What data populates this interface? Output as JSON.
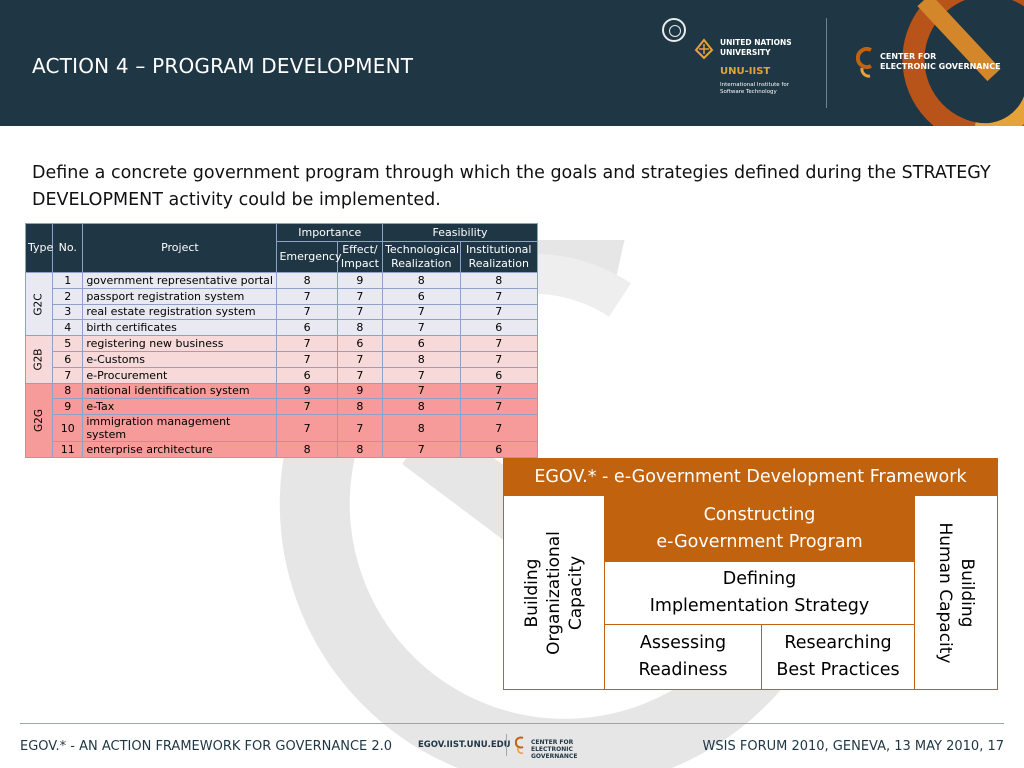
{
  "header": {
    "title": "ACTION 4 – PROGRAM DEVELOPMENT",
    "unu": {
      "name_line1": "UNITED NATIONS",
      "name_line2": "UNIVERSITY",
      "iist": "UNU-IIST",
      "iist_sub_line1": "International Institute for",
      "iist_sub_line2": "Software Technology"
    },
    "egov_center": {
      "line1": "CENTER FOR",
      "line2": "ELECTRONIC GOVERNANCE"
    }
  },
  "intro": "Define a concrete government program through which the goals and strategies defined during the STRATEGY DEVELOPMENT activity could be implemented.",
  "project_table": {
    "headers": {
      "type": "Type",
      "no": "No.",
      "project": "Project",
      "importance": "Importance",
      "feasibility": "Feasibility",
      "emergency": "Emergency",
      "effect_line1": "Effect/",
      "effect_line2": "Impact",
      "tech_line1": "Technological",
      "tech_line2": "Realization",
      "inst_line1": "Institutional",
      "inst_line2": "Realization"
    },
    "groups": [
      {
        "type": "G2C",
        "rows": [
          {
            "no": "1",
            "project": "government representative portal",
            "emergency": "8",
            "impact": "9",
            "tech": "8",
            "inst": "8"
          },
          {
            "no": "2",
            "project": "passport registration system",
            "emergency": "7",
            "impact": "7",
            "tech": "6",
            "inst": "7"
          },
          {
            "no": "3",
            "project": "real estate registration system",
            "emergency": "7",
            "impact": "7",
            "tech": "7",
            "inst": "7"
          },
          {
            "no": "4",
            "project": "birth certificates",
            "emergency": "6",
            "impact": "8",
            "tech": "7",
            "inst": "6"
          }
        ]
      },
      {
        "type": "G2B",
        "rows": [
          {
            "no": "5",
            "project": "registering new business",
            "emergency": "7",
            "impact": "6",
            "tech": "6",
            "inst": "7"
          },
          {
            "no": "6",
            "project": "e-Customs",
            "emergency": "7",
            "impact": "7",
            "tech": "8",
            "inst": "7"
          },
          {
            "no": "7",
            "project": "e-Procurement",
            "emergency": "6",
            "impact": "7",
            "tech": "7",
            "inst": "6"
          }
        ]
      },
      {
        "type": "G2G",
        "rows": [
          {
            "no": "8",
            "project": "national identification system",
            "emergency": "9",
            "impact": "9",
            "tech": "7",
            "inst": "7"
          },
          {
            "no": "9",
            "project": "e-Tax",
            "emergency": "7",
            "impact": "8",
            "tech": "8",
            "inst": "7"
          },
          {
            "no": "10",
            "project": "immigration management system",
            "emergency": "7",
            "impact": "7",
            "tech": "8",
            "inst": "7"
          },
          {
            "no": "11",
            "project": "enterprise architecture",
            "emergency": "8",
            "impact": "8",
            "tech": "7",
            "inst": "6"
          }
        ]
      }
    ]
  },
  "framework": {
    "title": "EGOV.* - e-Government Development Framework",
    "left_line1": "Building",
    "left_line2": "Organizational",
    "left_line3": "Capacity",
    "right_line1": "Building",
    "right_line2": "Human Capacity",
    "construct_line1": "Constructing",
    "construct_line2": "e-Government Program",
    "defining_line1": "Defining",
    "defining_line2": "Implementation Strategy",
    "assess_line1": "Assessing",
    "assess_line2": "Readiness",
    "research_line1": "Researching",
    "research_line2": "Best Practices"
  },
  "footer": {
    "left": "EGOV.* - AN ACTION FRAMEWORK FOR GOVERNANCE 2.0",
    "url": "EGOV.IIST.UNU.EDU",
    "center_line1": "CENTER FOR",
    "center_line2": "ELECTRONIC GOVERNANCE",
    "right": "WSIS FORUM 2010, GENEVA, 13 MAY 2010, 17"
  },
  "colors": {
    "header_bg": "#1f3644",
    "accent_orange": "#c0620e",
    "g2c_row": "#e9e9f2",
    "g2b_row": "#f8d9d9",
    "g2g_row": "#f69a9a"
  }
}
